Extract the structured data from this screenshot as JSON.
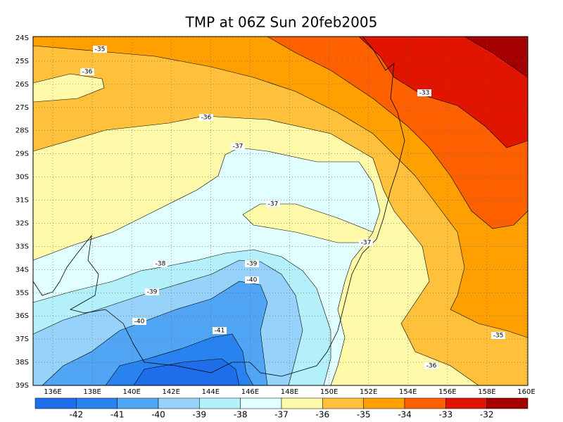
{
  "title": "TMP at 06Z Sun 20feb2005",
  "lat_labels": [
    "24S",
    "25S",
    "26S",
    "27S",
    "28S",
    "29S",
    "30S",
    "31S",
    "32S",
    "33S",
    "34S",
    "35S",
    "36S",
    "37S",
    "38S",
    "39S"
  ],
  "lon_labels": [
    "136E",
    "138E",
    "140E",
    "142E",
    "144E",
    "146E",
    "148E",
    "150E",
    "152E",
    "154E",
    "156E",
    "158E",
    "160E"
  ],
  "contour_labels": [
    "-35",
    "-36",
    "-36",
    "-37",
    "-33",
    "-37",
    "-37",
    "-38",
    "-39",
    "-40",
    "-39",
    "-40",
    "-41",
    "-35",
    "-36"
  ],
  "colorbar": {
    "labels": [
      "-42",
      "-41",
      "-40",
      "-39",
      "-38",
      "-37",
      "-36",
      "-35",
      "-34",
      "-33",
      "-32"
    ],
    "colors": [
      "#1e6eeb",
      "#2882f0",
      "#50a5f5",
      "#96d2fa",
      "#b4f0fa",
      "#e1ffff",
      "#fffaaa",
      "#ffc03c",
      "#ffa000",
      "#ff6000",
      "#e11400",
      "#a50000"
    ]
  }
}
